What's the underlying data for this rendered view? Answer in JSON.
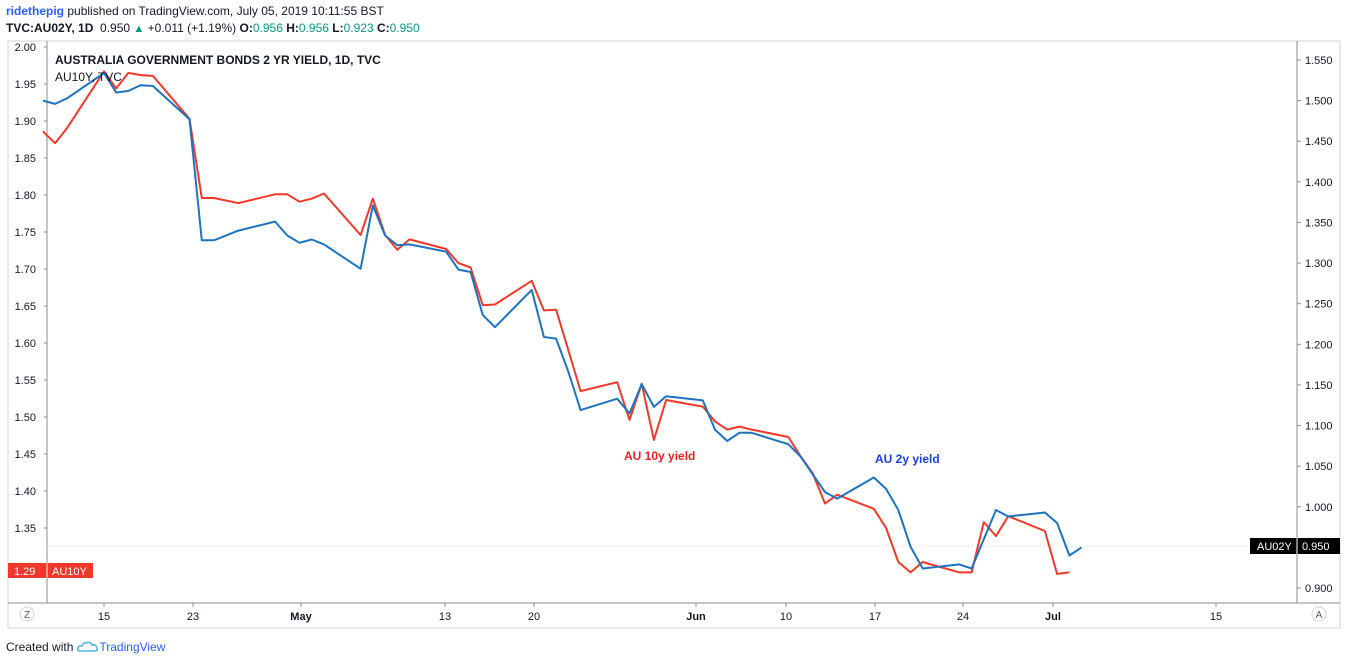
{
  "header": {
    "user": "ridethepig",
    "published": "published on TradingView.com, July 05, 2019 10:11:55 BST",
    "symbol": "TVC:AU02Y, 1D",
    "last": "0.950",
    "arrow": "▲",
    "change": "+0.011 (+1.19%)",
    "open_label": "O:",
    "open": "0.956",
    "high_label": "H:",
    "high": "0.956",
    "low_label": "L:",
    "low": "0.923",
    "close_label": "C:",
    "close": "0.950"
  },
  "chart_data": {
    "type": "line",
    "title": "AUSTRALIA GOVERNMENT BONDS 2 YR YIELD, 1D, TVC",
    "subtitle": "AU10Y, TVC",
    "x_ticks": [
      "15",
      "23",
      "May",
      "13",
      "20",
      "Jun",
      "10",
      "17",
      "24",
      "Jul",
      "15"
    ],
    "left_axis": {
      "ticks": [
        "2.00",
        "1.95",
        "1.90",
        "1.85",
        "1.80",
        "1.75",
        "1.70",
        "1.65",
        "1.60",
        "1.55",
        "1.50",
        "1.45",
        "1.40",
        "1.35"
      ],
      "range": [
        1.28,
        2.0
      ]
    },
    "right_axis": {
      "ticks": [
        "1.550",
        "1.500",
        "1.450",
        "1.400",
        "1.350",
        "1.300",
        "1.250",
        "1.200",
        "1.150",
        "1.100",
        "1.050",
        "1.000",
        "0.950",
        "0.900"
      ],
      "range": [
        0.88,
        1.56
      ]
    },
    "grid": false,
    "series": [
      {
        "name": "AU10Y",
        "axis": "left",
        "color": "#f0392b",
        "points": [
          [
            "2019-04-10",
            1.886
          ],
          [
            "2019-04-11",
            1.87
          ],
          [
            "2019-04-12",
            1.891
          ],
          [
            "2019-04-15",
            1.967
          ],
          [
            "2019-04-16",
            1.944
          ],
          [
            "2019-04-17",
            1.965
          ],
          [
            "2019-04-18",
            1.962
          ],
          [
            "2019-04-19",
            1.961
          ],
          [
            "2019-04-22",
            1.903
          ],
          [
            "2019-04-23",
            1.796
          ],
          [
            "2019-04-24",
            1.796
          ],
          [
            "2019-04-26",
            1.789
          ],
          [
            "2019-04-29",
            1.801
          ],
          [
            "2019-04-30",
            1.801
          ],
          [
            "2019-05-01",
            1.791
          ],
          [
            "2019-05-02",
            1.795
          ],
          [
            "2019-05-03",
            1.802
          ],
          [
            "2019-05-06",
            1.746
          ],
          [
            "2019-05-07",
            1.795
          ],
          [
            "2019-05-08",
            1.746
          ],
          [
            "2019-05-09",
            1.726
          ],
          [
            "2019-05-10",
            1.74
          ],
          [
            "2019-05-13",
            1.727
          ],
          [
            "2019-05-14",
            1.708
          ],
          [
            "2019-05-15",
            1.702
          ],
          [
            "2019-05-16",
            1.651
          ],
          [
            "2019-05-17",
            1.652
          ],
          [
            "2019-05-20",
            1.684
          ],
          [
            "2019-05-21",
            1.644
          ],
          [
            "2019-05-22",
            1.645
          ],
          [
            "2019-05-23",
            1.59
          ],
          [
            "2019-05-24",
            1.535
          ],
          [
            "2019-05-27",
            1.547
          ],
          [
            "2019-05-28",
            1.496
          ],
          [
            "2019-05-29",
            1.545
          ],
          [
            "2019-05-30",
            1.469
          ],
          [
            "2019-05-31",
            1.523
          ],
          [
            "2019-06-03",
            1.514
          ],
          [
            "2019-06-04",
            1.494
          ],
          [
            "2019-06-05",
            1.483
          ],
          [
            "2019-06-06",
            1.487
          ],
          [
            "2019-06-07",
            1.483
          ],
          [
            "2019-06-10",
            1.473
          ],
          [
            "2019-06-11",
            1.447
          ],
          [
            "2019-06-12",
            1.424
          ],
          [
            "2019-06-13",
            1.383
          ],
          [
            "2019-06-14",
            1.395
          ],
          [
            "2019-06-17",
            1.376
          ],
          [
            "2019-06-18",
            1.35
          ],
          [
            "2019-06-19",
            1.304
          ],
          [
            "2019-06-20",
            1.29
          ],
          [
            "2019-06-21",
            1.304
          ],
          [
            "2019-06-24",
            1.29
          ],
          [
            "2019-06-25",
            1.29
          ],
          [
            "2019-06-26",
            1.358
          ],
          [
            "2019-06-27",
            1.339
          ],
          [
            "2019-06-28",
            1.366
          ],
          [
            "2019-07-01",
            1.346
          ],
          [
            "2019-07-02",
            1.288
          ],
          [
            "2019-07-03",
            1.29
          ]
        ]
      },
      {
        "name": "AU02Y",
        "axis": "right",
        "color": "#1e73be",
        "points": [
          [
            "2019-04-10",
            1.5
          ],
          [
            "2019-04-11",
            1.496
          ],
          [
            "2019-04-12",
            1.503
          ],
          [
            "2019-04-15",
            1.534
          ],
          [
            "2019-04-16",
            1.51
          ],
          [
            "2019-04-17",
            1.512
          ],
          [
            "2019-04-18",
            1.519
          ],
          [
            "2019-04-19",
            1.518
          ],
          [
            "2019-04-22",
            1.477
          ],
          [
            "2019-04-23",
            1.328
          ],
          [
            "2019-04-24",
            1.328
          ],
          [
            "2019-04-26",
            1.34
          ],
          [
            "2019-04-29",
            1.351
          ],
          [
            "2019-04-30",
            1.334
          ],
          [
            "2019-05-01",
            1.325
          ],
          [
            "2019-05-02",
            1.329
          ],
          [
            "2019-05-03",
            1.323
          ],
          [
            "2019-05-06",
            1.293
          ],
          [
            "2019-05-07",
            1.371
          ],
          [
            "2019-05-08",
            1.334
          ],
          [
            "2019-05-09",
            1.322
          ],
          [
            "2019-05-10",
            1.323
          ],
          [
            "2019-05-13",
            1.314
          ],
          [
            "2019-05-14",
            1.292
          ],
          [
            "2019-05-15",
            1.289
          ],
          [
            "2019-05-16",
            1.236
          ],
          [
            "2019-05-17",
            1.221
          ],
          [
            "2019-05-20",
            1.267
          ],
          [
            "2019-05-21",
            1.209
          ],
          [
            "2019-05-22",
            1.207
          ],
          [
            "2019-05-23",
            1.166
          ],
          [
            "2019-05-24",
            1.119
          ],
          [
            "2019-05-27",
            1.133
          ],
          [
            "2019-05-28",
            1.115
          ],
          [
            "2019-05-29",
            1.151
          ],
          [
            "2019-05-30",
            1.123
          ],
          [
            "2019-05-31",
            1.136
          ],
          [
            "2019-06-03",
            1.131
          ],
          [
            "2019-06-04",
            1.095
          ],
          [
            "2019-06-05",
            1.081
          ],
          [
            "2019-06-06",
            1.091
          ],
          [
            "2019-06-07",
            1.091
          ],
          [
            "2019-06-10",
            1.077
          ],
          [
            "2019-06-11",
            1.062
          ],
          [
            "2019-06-12",
            1.04
          ],
          [
            "2019-06-13",
            1.018
          ],
          [
            "2019-06-14",
            1.01
          ],
          [
            "2019-06-17",
            1.036
          ],
          [
            "2019-06-18",
            1.022
          ],
          [
            "2019-06-19",
            0.996
          ],
          [
            "2019-06-20",
            0.951
          ],
          [
            "2019-06-21",
            0.924
          ],
          [
            "2019-06-24",
            0.929
          ],
          [
            "2019-06-25",
            0.924
          ],
          [
            "2019-06-26",
            0.96
          ],
          [
            "2019-06-27",
            0.996
          ],
          [
            "2019-06-28",
            0.988
          ],
          [
            "2019-07-01",
            0.993
          ],
          [
            "2019-07-02",
            0.98
          ],
          [
            "2019-07-03",
            0.94
          ],
          [
            "2019-07-04",
            0.95
          ]
        ]
      }
    ],
    "annotations": [
      {
        "text": "AU 10y yield",
        "color": "#e8221c"
      },
      {
        "text": "AU 2y yield",
        "color": "#1c3fd6"
      }
    ],
    "last_value_labels": {
      "left": {
        "value": "1.29",
        "name": "AU10Y",
        "color": "#f0392b"
      },
      "right": {
        "name": "AU02Y",
        "value": "0.950",
        "color": "#000000"
      }
    },
    "corner_labels": {
      "left": "Z",
      "right": "A"
    }
  },
  "footer": {
    "created_with": "Created with",
    "brand": "TradingView"
  }
}
